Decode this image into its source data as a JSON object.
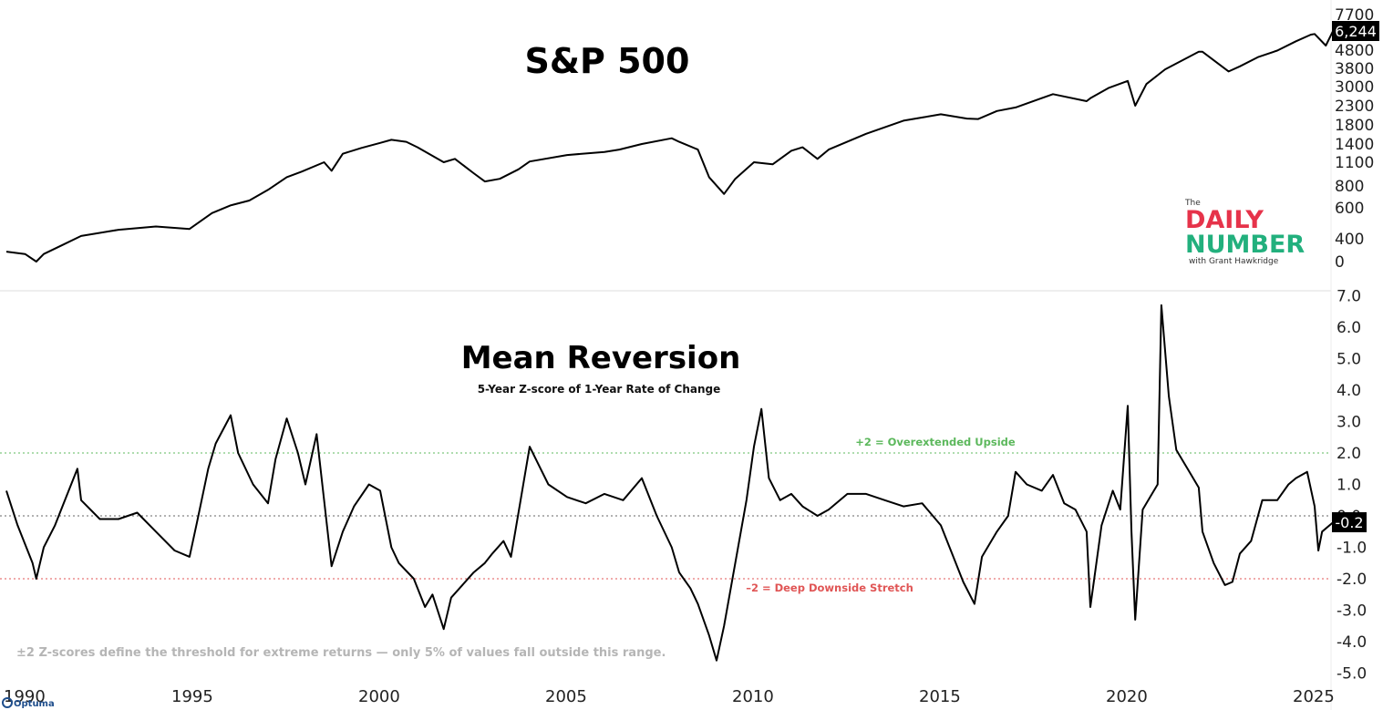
{
  "chart_data": [
    {
      "type": "line",
      "title": "S&P 500",
      "y_scale": "log",
      "y_ticks": [
        "7700",
        "4800",
        "3800",
        "3000",
        "2300",
        "1800",
        "1400",
        "1100",
        "800",
        "600",
        "400",
        "0"
      ],
      "last_value_label": "6,244",
      "series": [
        {
          "x": [
            1990.0,
            1990.5,
            1990.8,
            1991.0,
            1991.5,
            1992.0,
            1993.0,
            1994.0,
            1994.9,
            1995.5,
            1996.0,
            1996.5,
            1997.0,
            1997.5,
            1997.9,
            1998.5,
            1998.7,
            1999.0,
            1999.5,
            2000.0,
            2000.3,
            2000.7,
            2001.0,
            2001.7,
            2002.0,
            2002.5,
            2002.8,
            2003.2,
            2003.7,
            2004.0,
            2005.0,
            2006.0,
            2006.4,
            2007.0,
            2007.8,
            2008.0,
            2008.5,
            2008.8,
            2009.2,
            2009.5,
            2010.0,
            2010.5,
            2011.0,
            2011.3,
            2011.7,
            2012.0,
            2013.0,
            2014.0,
            2015.0,
            2015.7,
            2016.0,
            2016.5,
            2017.0,
            2018.0,
            2018.9,
            2019.0,
            2019.5,
            2020.0,
            2020.2,
            2020.5,
            2021.0,
            2021.9,
            2022.0,
            2022.7,
            2023.0,
            2023.5,
            2024.0,
            2024.5,
            2024.9,
            2025.0,
            2025.3,
            2025.5
          ],
          "y": [
            340,
            330,
            300,
            330,
            370,
            415,
            450,
            470,
            455,
            560,
            620,
            660,
            760,
            900,
            970,
            1100,
            980,
            1230,
            1330,
            1420,
            1480,
            1440,
            1340,
            1100,
            1150,
            950,
            850,
            880,
            1000,
            1110,
            1210,
            1260,
            1300,
            1400,
            1510,
            1440,
            1300,
            900,
            720,
            880,
            1100,
            1070,
            1280,
            1340,
            1150,
            1300,
            1600,
            1900,
            2060,
            1950,
            1940,
            2150,
            2250,
            2700,
            2450,
            2550,
            2950,
            3230,
            2300,
            3100,
            3750,
            4700,
            4700,
            3650,
            3900,
            4400,
            4770,
            5400,
            5900,
            5950,
            5100,
            6244
          ]
        }
      ]
    },
    {
      "type": "line",
      "title": "Mean Reversion",
      "subtitle": "5-Year Z-score of 1-Year Rate of Change",
      "ylim": [
        -5.0,
        7.0
      ],
      "y_ticks": [
        "7.0",
        "6.0",
        "5.0",
        "4.0",
        "3.0",
        "2.0",
        "1.0",
        "0.0",
        "-1.0",
        "-2.0",
        "-3.0",
        "-4.0",
        "-5.0"
      ],
      "x_ticks": [
        "1990",
        "1995",
        "2000",
        "2005",
        "2010",
        "2015",
        "2020",
        "2025"
      ],
      "last_value_label": "-0.2",
      "reference_lines": [
        {
          "y": 2,
          "label": "+2 = Overextended Upside",
          "color": "#5cb85c"
        },
        {
          "y": 0,
          "label": "",
          "color": "#666666"
        },
        {
          "y": -2,
          "label": "–2 = Deep Downside Stretch",
          "color": "#e05555"
        }
      ],
      "note": "±2 Z-scores define the threshold for extreme returns — only 5% of values fall outside this range.",
      "series": [
        {
          "x": [
            1990.0,
            1990.3,
            1990.7,
            1990.8,
            1991.0,
            1991.3,
            1991.5,
            1991.9,
            1992.0,
            1992.5,
            1993.0,
            1993.5,
            1994.0,
            1994.5,
            1994.9,
            1995.1,
            1995.4,
            1995.6,
            1996.0,
            1996.2,
            1996.6,
            1997.0,
            1997.2,
            1997.5,
            1997.8,
            1998.0,
            1998.3,
            1998.5,
            1998.7,
            1999.0,
            1999.3,
            1999.7,
            2000.0,
            2000.3,
            2000.5,
            2000.9,
            2001.2,
            2001.4,
            2001.7,
            2001.9,
            2002.2,
            2002.5,
            2002.8,
            2003.0,
            2003.3,
            2003.5,
            2003.8,
            2004.0,
            2004.5,
            2005.0,
            2005.5,
            2006.0,
            2006.5,
            2007.0,
            2007.4,
            2007.8,
            2008.0,
            2008.3,
            2008.5,
            2008.8,
            2009.0,
            2009.2,
            2009.5,
            2009.8,
            2010.0,
            2010.2,
            2010.4,
            2010.7,
            2011.0,
            2011.3,
            2011.7,
            2012.0,
            2012.5,
            2013.0,
            2013.5,
            2014.0,
            2014.5,
            2015.0,
            2015.3,
            2015.6,
            2015.9,
            2016.1,
            2016.5,
            2016.8,
            2017.0,
            2017.3,
            2017.7,
            2018.0,
            2018.3,
            2018.6,
            2018.9,
            2019.0,
            2019.3,
            2019.6,
            2019.8,
            2020.0,
            2020.1,
            2020.2,
            2020.4,
            2020.6,
            2020.8,
            2020.9,
            2021.1,
            2021.3,
            2021.6,
            2021.9,
            2022.0,
            2022.3,
            2022.6,
            2022.8,
            2023.0,
            2023.3,
            2023.6,
            2024.0,
            2024.3,
            2024.5,
            2024.8,
            2025.0,
            2025.1,
            2025.2,
            2025.5
          ],
          "y": [
            0.8,
            -0.3,
            -1.5,
            -2.0,
            -1.0,
            -0.3,
            0.3,
            1.5,
            0.5,
            -0.1,
            -0.1,
            0.1,
            -0.5,
            -1.1,
            -1.3,
            -0.2,
            1.5,
            2.3,
            3.2,
            2.0,
            1.0,
            0.4,
            1.8,
            3.1,
            2.0,
            1.0,
            2.6,
            0.5,
            -1.6,
            -0.5,
            0.3,
            1.0,
            0.8,
            -1.0,
            -1.5,
            -2.0,
            -2.9,
            -2.5,
            -3.6,
            -2.6,
            -2.2,
            -1.8,
            -1.5,
            -1.2,
            -0.8,
            -1.3,
            0.8,
            2.2,
            1.0,
            0.6,
            0.4,
            0.7,
            0.5,
            1.2,
            0.0,
            -1.0,
            -1.8,
            -2.3,
            -2.8,
            -3.8,
            -4.6,
            -3.5,
            -1.5,
            0.5,
            2.2,
            3.4,
            1.2,
            0.5,
            0.7,
            0.3,
            0.0,
            0.2,
            0.7,
            0.7,
            0.5,
            0.3,
            0.4,
            -0.3,
            -1.2,
            -2.1,
            -2.8,
            -1.3,
            -0.5,
            0.0,
            1.4,
            1.0,
            0.8,
            1.3,
            0.4,
            0.2,
            -0.5,
            -2.9,
            -0.3,
            0.8,
            0.2,
            3.5,
            -0.5,
            -3.3,
            0.2,
            0.6,
            1.0,
            6.7,
            3.8,
            2.1,
            1.5,
            0.9,
            -0.5,
            -1.5,
            -2.2,
            -2.1,
            -1.2,
            -0.8,
            0.5,
            0.5,
            1.0,
            1.2,
            1.4,
            0.3,
            -1.1,
            -0.5,
            -0.2
          ]
        }
      ]
    }
  ],
  "logo": {
    "line1": "The",
    "line2": "DAILY",
    "line3": "NUMBER",
    "line4": "with Grant Hawkridge"
  },
  "watermark": "Optuma"
}
